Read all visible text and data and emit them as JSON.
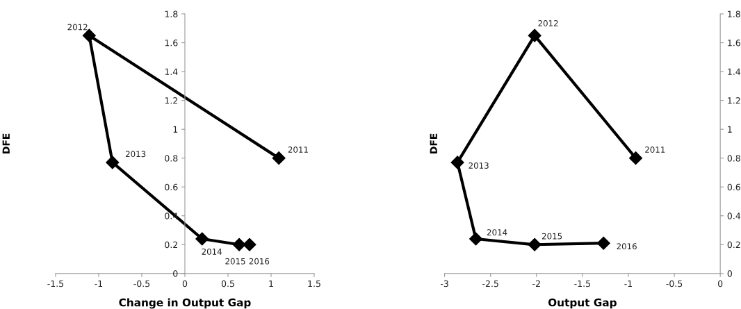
{
  "chart_data": [
    {
      "type": "line",
      "xlabel": "Change in Output Gap",
      "ylabel": "DFE",
      "marker": "diamond",
      "line_style": "solid",
      "grid": false,
      "legend": false,
      "x": [
        1.09,
        -1.11,
        -0.84,
        0.2,
        0.63,
        0.75
      ],
      "series": [
        {
          "color": "#000000",
          "values": [
            0.8,
            1.65,
            0.77,
            0.24,
            0.2,
            0.2
          ]
        }
      ],
      "xlim": [
        -1.5,
        1.5
      ],
      "xticks": [
        -1.5,
        -1,
        -0.5,
        0,
        0.5,
        1,
        1.5
      ],
      "ylim": [
        0,
        1.8
      ],
      "yticks": [
        0,
        0.2,
        0.4,
        0.6,
        0.8,
        1,
        1.2,
        1.4,
        1.6,
        1.8
      ],
      "annotations": [
        {
          "text": "2011",
          "x": 1.09,
          "y": 0.8
        },
        {
          "text": "2012",
          "x": -1.11,
          "y": 1.65
        },
        {
          "text": "2013",
          "x": -0.84,
          "y": 0.77
        },
        {
          "text": "2014",
          "x": 0.2,
          "y": 0.24
        },
        {
          "text": "2015",
          "x": 0.63,
          "y": 0.2
        },
        {
          "text": "2016",
          "x": 0.75,
          "y": 0.2
        }
      ]
    },
    {
      "type": "line",
      "xlabel": "Output Gap",
      "ylabel": "DFE",
      "marker": "diamond",
      "line_style": "solid",
      "grid": false,
      "legend": false,
      "x": [
        -0.92,
        -2.02,
        -2.86,
        -2.66,
        -2.02,
        -1.27
      ],
      "series": [
        {
          "color": "#000000",
          "values": [
            0.8,
            1.65,
            0.77,
            0.24,
            0.2,
            0.21
          ]
        }
      ],
      "xlim": [
        -3,
        0
      ],
      "xticks": [
        -3,
        -2.5,
        -2,
        -1.5,
        -1,
        -0.5,
        0
      ],
      "ylim": [
        0,
        1.8
      ],
      "yticks": [
        0,
        0.2,
        0.4,
        0.6,
        0.8,
        1,
        1.2,
        1.4,
        1.6,
        1.8
      ],
      "annotations": [
        {
          "text": "2011",
          "x": -0.92,
          "y": 0.8
        },
        {
          "text": "2012",
          "x": -2.02,
          "y": 1.65
        },
        {
          "text": "2013",
          "x": -2.86,
          "y": 0.77
        },
        {
          "text": "2014",
          "x": -2.66,
          "y": 0.24
        },
        {
          "text": "2015",
          "x": -2.02,
          "y": 0.2
        },
        {
          "text": "2016",
          "x": -1.27,
          "y": 0.21
        }
      ]
    }
  ]
}
